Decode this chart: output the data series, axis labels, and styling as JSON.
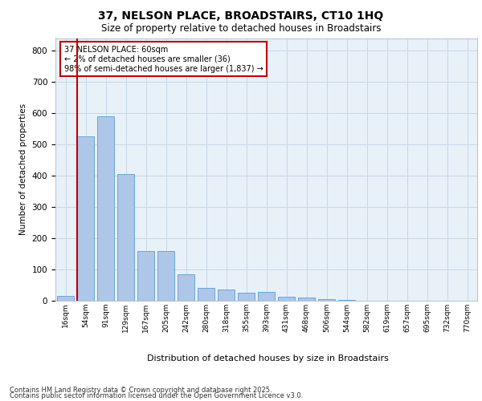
{
  "title_line1": "37, NELSON PLACE, BROADSTAIRS, CT10 1HQ",
  "title_line2": "Size of property relative to detached houses in Broadstairs",
  "xlabel": "Distribution of detached houses by size in Broadstairs",
  "ylabel": "Number of detached properties",
  "bar_labels": [
    "16sqm",
    "54sqm",
    "91sqm",
    "129sqm",
    "167sqm",
    "205sqm",
    "242sqm",
    "280sqm",
    "318sqm",
    "355sqm",
    "393sqm",
    "431sqm",
    "468sqm",
    "506sqm",
    "544sqm",
    "582sqm",
    "619sqm",
    "657sqm",
    "695sqm",
    "732sqm",
    "770sqm"
  ],
  "bar_values": [
    15,
    525,
    590,
    405,
    160,
    158,
    85,
    40,
    35,
    25,
    28,
    12,
    10,
    5,
    2,
    1,
    1,
    0,
    0,
    0,
    0
  ],
  "bar_color": "#aec6e8",
  "bar_edge_color": "#5a9fd4",
  "highlight_color": "#c00000",
  "highlight_index": 1,
  "annotation_text": "37 NELSON PLACE: 60sqm\n← 2% of detached houses are smaller (36)\n98% of semi-detached houses are larger (1,837) →",
  "annotation_box_color": "#ffffff",
  "annotation_box_edge_color": "#c00000",
  "ylim": [
    0,
    840
  ],
  "yticks": [
    0,
    100,
    200,
    300,
    400,
    500,
    600,
    700,
    800
  ],
  "grid_color": "#c8d8e8",
  "bg_color": "#e8f0f8",
  "footer_line1": "Contains HM Land Registry data © Crown copyright and database right 2025.",
  "footer_line2": "Contains public sector information licensed under the Open Government Licence v3.0."
}
